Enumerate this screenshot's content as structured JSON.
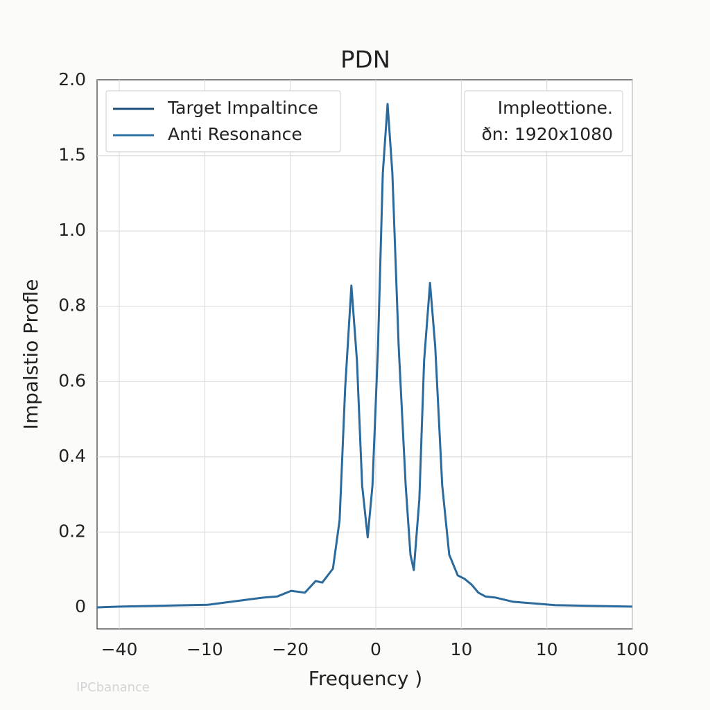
{
  "chart_data": {
    "type": "line",
    "title": "PDN",
    "xlabel": "Frequency )",
    "ylabel": "Impalstio Profle",
    "legend": [
      {
        "label": "Target Impaltince",
        "color": "#1d4f7c"
      },
      {
        "label": "Anti Resonance",
        "color": "#2e74a6"
      }
    ],
    "annotation": [
      "Impleottione.",
      "ðn: 1920x1080"
    ],
    "watermark": "IPCbanance",
    "color": "#2a6a9c",
    "grid": true,
    "x": [
      -45,
      -39,
      -15,
      0,
      3.8,
      7.6,
      11.3,
      14.2,
      16,
      18.9,
      20.7,
      22.2,
      23.9,
      25.4,
      26.8,
      28.3,
      29.6,
      31.1,
      32.4,
      33.7,
      35,
      36.7,
      38.6,
      39.9,
      40.8,
      42.3,
      43.6,
      45.2,
      46.6,
      48.5,
      50.4,
      52.7,
      54.5,
      56.4,
      58.3,
      60.2,
      63,
      67.7,
      79,
      100
    ],
    "values": [
      0,
      0.002,
      0.007,
      0.026,
      0.029,
      0.044,
      0.039,
      0.07,
      0.066,
      0.103,
      0.232,
      0.582,
      0.855,
      0.656,
      0.324,
      0.186,
      0.324,
      0.693,
      1.384,
      1.844,
      1.384,
      0.693,
      0.324,
      0.14,
      0.099,
      0.287,
      0.656,
      0.862,
      0.693,
      0.324,
      0.14,
      0.085,
      0.076,
      0.061,
      0.039,
      0.029,
      0.026,
      0.015,
      0.006,
      0.002
    ],
    "xlim": [
      -45,
      100
    ],
    "xtick_labels": [
      "−40",
      "−10",
      "−20",
      "0",
      "10",
      "10",
      "100"
    ],
    "ylim": [
      -0.057,
      2.0
    ],
    "yticks": [
      {
        "value": 2,
        "label": "2.0"
      },
      1.5,
      {
        "value": 1,
        "label": "1.0"
      },
      0.8,
      0.6,
      0.4,
      0.2,
      0
    ]
  }
}
